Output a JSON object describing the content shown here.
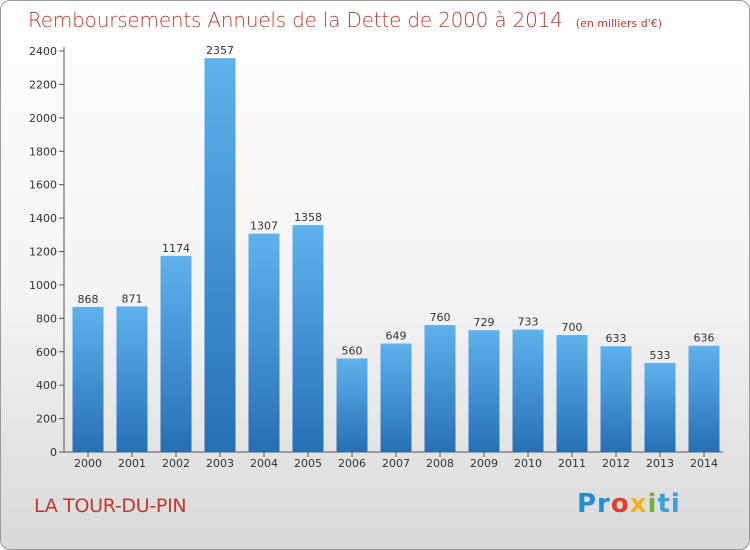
{
  "header": {
    "title": "Remboursements Annuels de la Dette de 2000 à 2014",
    "subtitle": "(en milliers d'€)"
  },
  "footer": {
    "commune": "LA TOUR-DU-PIN",
    "logo": [
      "Pr",
      "o",
      "x",
      "i",
      "ti"
    ]
  },
  "colors": {
    "bar_top": "#5fb2ee",
    "bar_bottom": "#2670b4",
    "title": "#c0392b"
  },
  "chart_data": {
    "type": "bar",
    "title": "Remboursements Annuels de la Dette de 2000 à 2014",
    "subtitle": "(en milliers d'€)",
    "categories": [
      "2000",
      "2001",
      "2002",
      "2003",
      "2004",
      "2005",
      "2006",
      "2007",
      "2008",
      "2009",
      "2010",
      "2011",
      "2012",
      "2013",
      "2014"
    ],
    "values": [
      868,
      871,
      1174,
      2357,
      1307,
      1358,
      560,
      649,
      760,
      729,
      733,
      700,
      633,
      533,
      636
    ],
    "ylim": [
      0,
      2400
    ],
    "yticks": [
      0,
      200,
      400,
      600,
      800,
      1000,
      1200,
      1400,
      1600,
      1800,
      2000,
      2200,
      2400
    ],
    "grid": false,
    "data_labels": true
  }
}
